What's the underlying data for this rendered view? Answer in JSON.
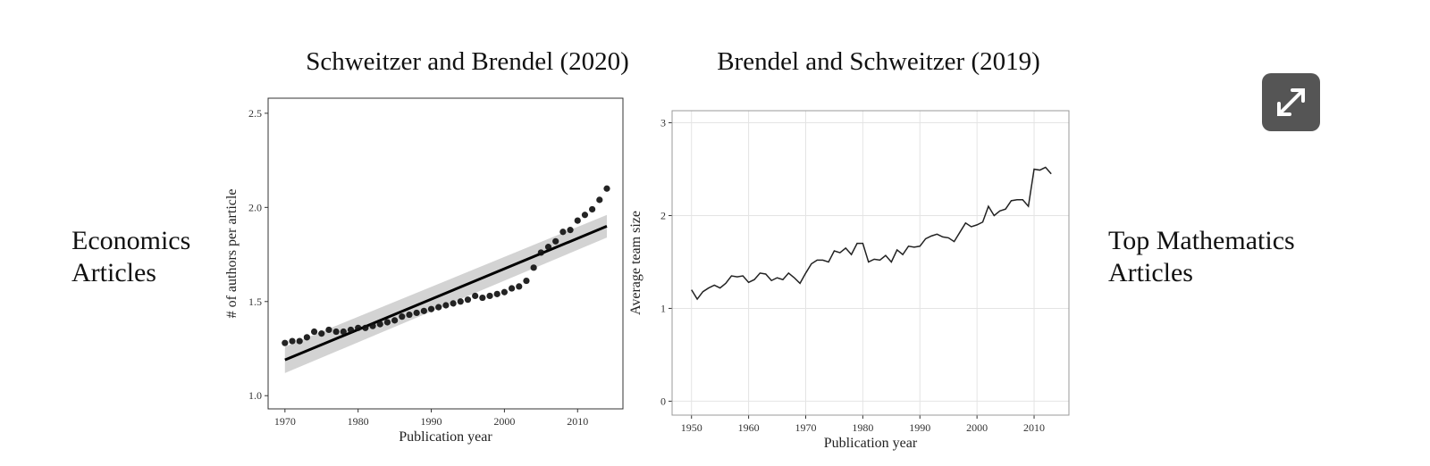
{
  "side_labels": {
    "left": [
      "Economics",
      "Articles"
    ],
    "right": [
      "Top Mathematics",
      "Articles"
    ]
  },
  "chart_data": [
    {
      "type": "scatter",
      "title": "Schweitzer and Brendel (2020)",
      "xlabel": "Publication year",
      "ylabel": "# of authors per article",
      "x": [
        1970,
        1971,
        1972,
        1973,
        1974,
        1975,
        1976,
        1977,
        1978,
        1979,
        1980,
        1981,
        1982,
        1983,
        1984,
        1985,
        1986,
        1987,
        1988,
        1989,
        1990,
        1991,
        1992,
        1993,
        1994,
        1995,
        1996,
        1997,
        1998,
        1999,
        2000,
        2001,
        2002,
        2003,
        2004,
        2005,
        2006,
        2007,
        2008,
        2009,
        2010,
        2011,
        2012,
        2013,
        2014
      ],
      "values": [
        1.28,
        1.29,
        1.29,
        1.31,
        1.34,
        1.33,
        1.35,
        1.34,
        1.34,
        1.35,
        1.36,
        1.36,
        1.37,
        1.38,
        1.39,
        1.4,
        1.42,
        1.43,
        1.44,
        1.45,
        1.46,
        1.47,
        1.48,
        1.49,
        1.5,
        1.51,
        1.53,
        1.52,
        1.53,
        1.54,
        1.55,
        1.57,
        1.58,
        1.61,
        1.68,
        1.76,
        1.79,
        1.82,
        1.87,
        1.88,
        1.93,
        1.96,
        1.99,
        2.04,
        2.1
      ],
      "color": "#111111",
      "trend": {
        "x": [
          1970,
          2014
        ],
        "values": [
          1.19,
          1.9
        ],
        "lower": [
          1.12,
          1.84
        ],
        "upper": [
          1.26,
          1.96
        ],
        "color": "#000000",
        "band_color": "#c8c8c8"
      },
      "xlim": [
        1967.7,
        2016.2
      ],
      "ylim": [
        0.93,
        2.58
      ],
      "xticks": [
        1970,
        1980,
        1990,
        2000,
        2010
      ],
      "yticks": [
        {
          "value": 1,
          "label": "1.0"
        },
        {
          "value": 1.5,
          "label": "1.5"
        },
        {
          "value": 2,
          "label": "2.0"
        },
        {
          "value": 2.5,
          "label": "2.5"
        }
      ],
      "grid": false
    },
    {
      "type": "line",
      "title": "Brendel and Schweitzer (2019)",
      "xlabel": "Publication year",
      "ylabel": "Average team size",
      "x": [
        1950,
        1951,
        1952,
        1953,
        1954,
        1955,
        1956,
        1957,
        1958,
        1959,
        1960,
        1961,
        1962,
        1963,
        1964,
        1965,
        1966,
        1967,
        1968,
        1969,
        1970,
        1971,
        1972,
        1973,
        1974,
        1975,
        1976,
        1977,
        1978,
        1979,
        1980,
        1981,
        1982,
        1983,
        1984,
        1985,
        1986,
        1987,
        1988,
        1989,
        1990,
        1991,
        1992,
        1993,
        1994,
        1995,
        1996,
        1997,
        1998,
        1999,
        2000,
        2001,
        2002,
        2003,
        2004,
        2005,
        2006,
        2007,
        2008,
        2009,
        2010,
        2011,
        2012,
        2013
      ],
      "values": [
        1.2,
        1.1,
        1.18,
        1.22,
        1.25,
        1.22,
        1.27,
        1.35,
        1.34,
        1.35,
        1.28,
        1.31,
        1.38,
        1.37,
        1.3,
        1.33,
        1.31,
        1.38,
        1.33,
        1.27,
        1.38,
        1.48,
        1.52,
        1.52,
        1.5,
        1.62,
        1.6,
        1.65,
        1.58,
        1.7,
        1.7,
        1.5,
        1.53,
        1.52,
        1.57,
        1.5,
        1.63,
        1.58,
        1.67,
        1.66,
        1.67,
        1.75,
        1.78,
        1.8,
        1.77,
        1.76,
        1.72,
        1.82,
        1.92,
        1.88,
        1.9,
        1.93,
        2.1,
        2.0,
        2.05,
        2.07,
        2.16,
        2.17,
        2.17,
        2.1,
        2.5,
        2.49,
        2.52,
        2.45
      ],
      "color": "#222222",
      "xlim": [
        1946.6,
        2016.1
      ],
      "ylim": [
        -0.15,
        3.13
      ],
      "xticks": [
        1950,
        1960,
        1970,
        1980,
        1990,
        2000,
        2010
      ],
      "yticks": [
        0,
        1,
        2,
        3
      ],
      "grid": true
    }
  ]
}
